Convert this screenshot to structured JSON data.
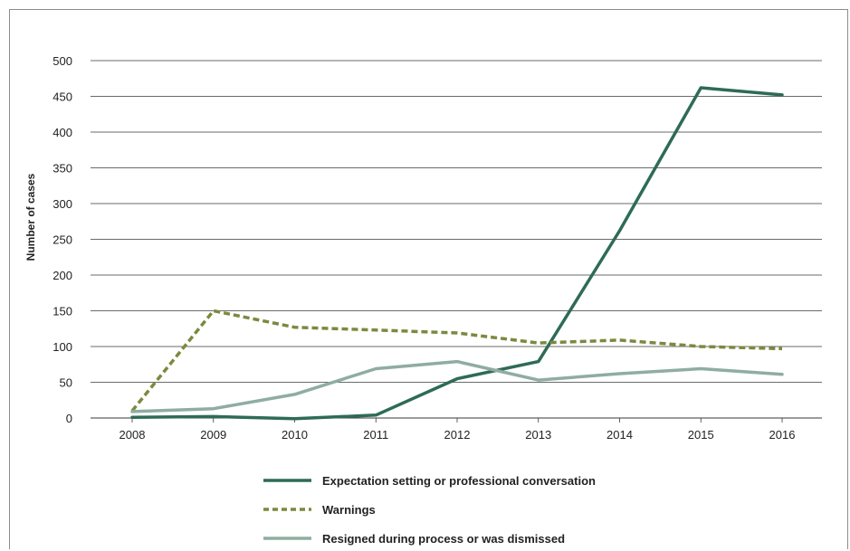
{
  "chart_data": {
    "type": "line",
    "title": "",
    "xlabel": "",
    "ylabel": "Number of cases",
    "x": [
      "2008",
      "2009",
      "2010",
      "2011",
      "2012",
      "2013",
      "2014",
      "2015",
      "2016"
    ],
    "ylim": [
      0,
      500
    ],
    "yticks": [
      0,
      50,
      100,
      150,
      200,
      250,
      300,
      350,
      400,
      450,
      500
    ],
    "grid": "horizontal",
    "legend_position": "bottom",
    "series": [
      {
        "name": "Expectation setting or professional conversation",
        "values": [
          1,
          2,
          -1,
          4,
          55,
          79,
          262,
          462,
          452
        ],
        "color": "#2e6b57",
        "style": "solid"
      },
      {
        "name": "Warnings",
        "values": [
          10,
          150,
          127,
          123,
          119,
          105,
          109,
          100,
          97
        ],
        "color": "#7a8a3e",
        "style": "dashed"
      },
      {
        "name": "Resigned during process or was dismissed",
        "values": [
          9,
          13,
          33,
          69,
          79,
          53,
          62,
          69,
          61
        ],
        "color": "#8fada0",
        "style": "solid"
      }
    ]
  }
}
